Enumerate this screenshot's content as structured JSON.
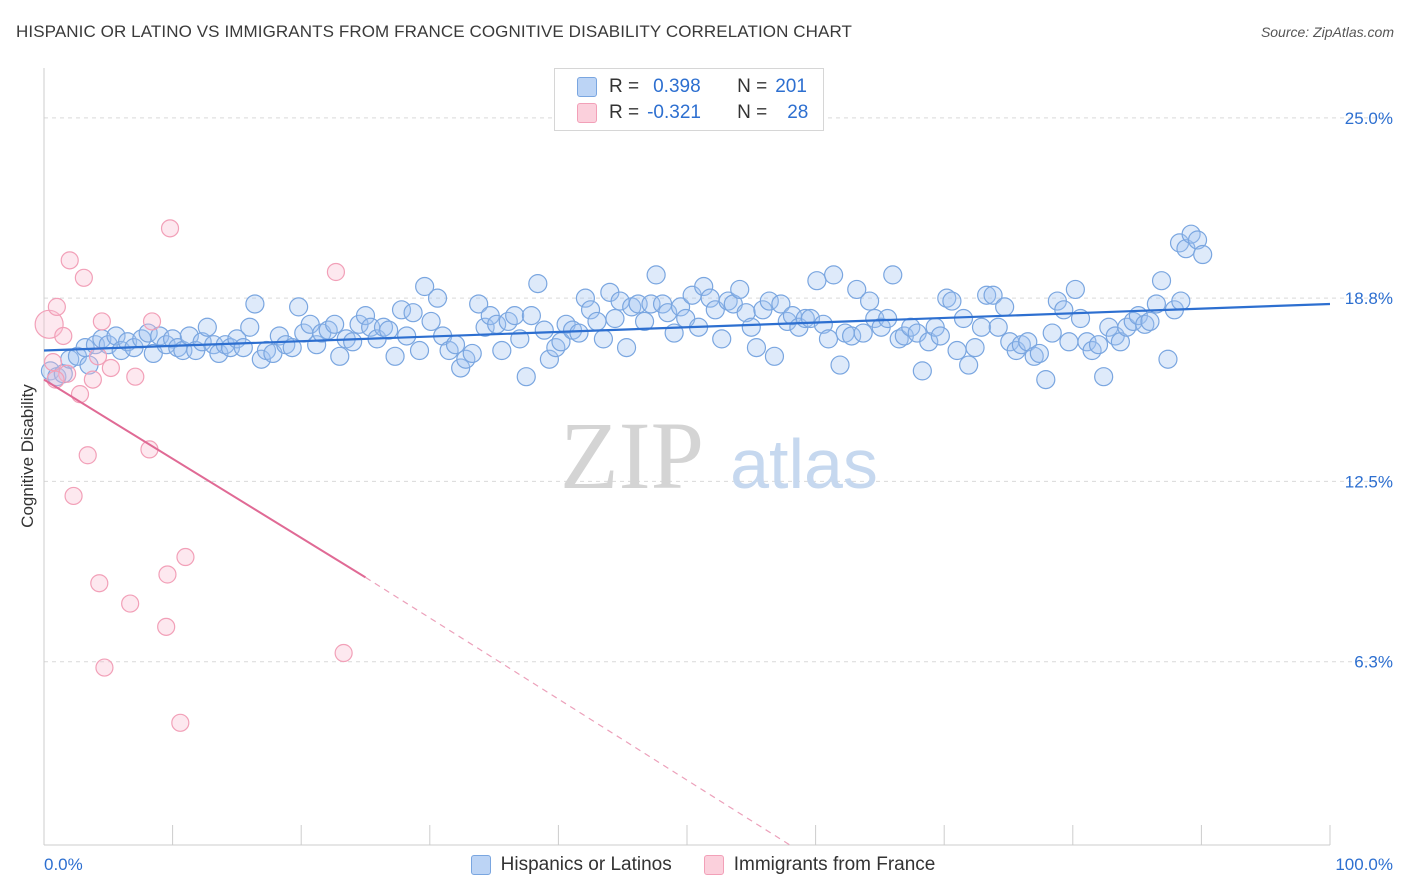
{
  "header": {
    "title": "HISPANIC OR LATINO VS IMMIGRANTS FROM FRANCE COGNITIVE DISABILITY CORRELATION CHART",
    "source": "Source: ZipAtlas.com"
  },
  "watermark": {
    "zip": "ZIP",
    "atlas": "atlas"
  },
  "legend": {
    "rows": [
      {
        "r_label": "R =",
        "r_value": "0.398",
        "n_label": "N =",
        "n_value": "201",
        "color": "#7aa6e0"
      },
      {
        "r_label": "R =",
        "r_value": "-0.321",
        "n_label": "N =",
        "n_value": "28",
        "color": "#f2a0b8"
      }
    ]
  },
  "bottom_legend": {
    "items": [
      {
        "label": "Hispanics or Latinos",
        "color": "#7aa6e0"
      },
      {
        "label": "Immigrants from France",
        "color": "#f2a0b8"
      }
    ]
  },
  "chart_data": {
    "type": "scatter",
    "title": "HISPANIC OR LATINO VS IMMIGRANTS FROM FRANCE COGNITIVE DISABILITY CORRELATION CHART",
    "ylabel": "Cognitive Disability",
    "xlabel": "",
    "xlim": [
      0,
      100
    ],
    "ylim": [
      0,
      26.3
    ],
    "x_tick_labels": [
      "0.0%",
      "100.0%"
    ],
    "y_ticks": [
      6.3,
      12.5,
      18.8,
      25.0
    ],
    "y_tick_labels": [
      "6.3%",
      "12.5%",
      "18.8%",
      "25.0%"
    ],
    "grid": "horizontal dashed",
    "series": [
      {
        "name": "Hispanics or Latinos",
        "color": "#7aa6e0",
        "trend": {
          "x": [
            0,
            100
          ],
          "y": [
            17.0,
            18.6
          ]
        },
        "points": [
          [
            0.5,
            16.3
          ],
          [
            1.0,
            16.1
          ],
          [
            1.5,
            16.2
          ],
          [
            2.0,
            16.7
          ],
          [
            2.6,
            16.8
          ],
          [
            3.2,
            17.1
          ],
          [
            3.5,
            16.5
          ],
          [
            4.0,
            17.2
          ],
          [
            4.5,
            17.4
          ],
          [
            5.0,
            17.2
          ],
          [
            5.6,
            17.5
          ],
          [
            6.0,
            17.0
          ],
          [
            6.5,
            17.3
          ],
          [
            7.0,
            17.1
          ],
          [
            7.6,
            17.4
          ],
          [
            8.1,
            17.6
          ],
          [
            8.5,
            16.9
          ],
          [
            9.0,
            17.5
          ],
          [
            9.5,
            17.2
          ],
          [
            10.0,
            17.4
          ],
          [
            10.4,
            17.1
          ],
          [
            10.8,
            17.0
          ],
          [
            11.3,
            17.5
          ],
          [
            11.8,
            17.0
          ],
          [
            12.3,
            17.3
          ],
          [
            12.7,
            17.8
          ],
          [
            13.2,
            17.2
          ],
          [
            13.6,
            16.9
          ],
          [
            14.1,
            17.2
          ],
          [
            14.5,
            17.1
          ],
          [
            15.0,
            17.4
          ],
          [
            15.5,
            17.1
          ],
          [
            16.0,
            17.8
          ],
          [
            16.4,
            18.6
          ],
          [
            16.9,
            16.7
          ],
          [
            17.3,
            17.0
          ],
          [
            17.8,
            16.9
          ],
          [
            18.3,
            17.5
          ],
          [
            18.8,
            17.2
          ],
          [
            19.3,
            17.1
          ],
          [
            19.8,
            18.5
          ],
          [
            20.2,
            17.6
          ],
          [
            20.7,
            17.9
          ],
          [
            21.2,
            17.2
          ],
          [
            21.6,
            17.6
          ],
          [
            22.1,
            17.7
          ],
          [
            22.6,
            17.9
          ],
          [
            23.0,
            16.8
          ],
          [
            23.5,
            17.4
          ],
          [
            24.0,
            17.3
          ],
          [
            24.5,
            17.9
          ],
          [
            25.0,
            18.2
          ],
          [
            25.4,
            17.8
          ],
          [
            25.9,
            17.4
          ],
          [
            26.4,
            17.8
          ],
          [
            26.8,
            17.7
          ],
          [
            27.3,
            16.8
          ],
          [
            27.8,
            18.4
          ],
          [
            28.2,
            17.5
          ],
          [
            28.7,
            18.3
          ],
          [
            29.2,
            17.0
          ],
          [
            29.6,
            19.2
          ],
          [
            30.1,
            18.0
          ],
          [
            30.6,
            18.8
          ],
          [
            31.0,
            17.5
          ],
          [
            31.5,
            17.0
          ],
          [
            32.0,
            17.2
          ],
          [
            32.4,
            16.4
          ],
          [
            32.8,
            16.7
          ],
          [
            33.3,
            16.9
          ],
          [
            33.8,
            18.6
          ],
          [
            34.3,
            17.8
          ],
          [
            34.7,
            18.2
          ],
          [
            35.2,
            17.9
          ],
          [
            35.6,
            17.0
          ],
          [
            36.1,
            18.0
          ],
          [
            36.6,
            18.2
          ],
          [
            37.0,
            17.4
          ],
          [
            37.5,
            16.1
          ],
          [
            37.9,
            18.2
          ],
          [
            38.4,
            19.3
          ],
          [
            38.9,
            17.7
          ],
          [
            39.3,
            16.7
          ],
          [
            39.8,
            17.1
          ],
          [
            40.2,
            17.3
          ],
          [
            40.6,
            17.9
          ],
          [
            41.1,
            17.7
          ],
          [
            41.6,
            17.6
          ],
          [
            42.1,
            18.8
          ],
          [
            42.5,
            18.4
          ],
          [
            43.0,
            18.0
          ],
          [
            43.5,
            17.4
          ],
          [
            44.0,
            19.0
          ],
          [
            44.4,
            18.1
          ],
          [
            44.8,
            18.7
          ],
          [
            45.3,
            17.1
          ],
          [
            45.7,
            18.5
          ],
          [
            46.2,
            18.6
          ],
          [
            46.7,
            18.0
          ],
          [
            47.2,
            18.6
          ],
          [
            47.6,
            19.6
          ],
          [
            48.1,
            18.6
          ],
          [
            48.5,
            18.3
          ],
          [
            49.0,
            17.6
          ],
          [
            49.5,
            18.5
          ],
          [
            49.9,
            18.1
          ],
          [
            50.4,
            18.9
          ],
          [
            50.9,
            17.8
          ],
          [
            51.3,
            19.2
          ],
          [
            51.8,
            18.8
          ],
          [
            52.2,
            18.4
          ],
          [
            52.7,
            17.4
          ],
          [
            53.2,
            18.7
          ],
          [
            53.6,
            18.6
          ],
          [
            54.1,
            19.1
          ],
          [
            54.6,
            18.3
          ],
          [
            55.0,
            17.8
          ],
          [
            55.4,
            17.1
          ],
          [
            55.9,
            18.4
          ],
          [
            56.4,
            18.7
          ],
          [
            56.8,
            16.8
          ],
          [
            57.3,
            18.6
          ],
          [
            57.8,
            18.0
          ],
          [
            58.2,
            18.2
          ],
          [
            58.7,
            17.8
          ],
          [
            59.2,
            18.1
          ],
          [
            59.6,
            18.1
          ],
          [
            60.1,
            19.4
          ],
          [
            60.6,
            17.9
          ],
          [
            61.0,
            17.4
          ],
          [
            61.4,
            19.6
          ],
          [
            61.9,
            16.5
          ],
          [
            62.3,
            17.6
          ],
          [
            62.8,
            17.5
          ],
          [
            63.2,
            19.1
          ],
          [
            63.7,
            17.6
          ],
          [
            64.2,
            18.7
          ],
          [
            64.6,
            18.1
          ],
          [
            65.1,
            17.8
          ],
          [
            65.6,
            18.1
          ],
          [
            66.0,
            19.6
          ],
          [
            66.5,
            17.4
          ],
          [
            66.9,
            17.5
          ],
          [
            67.4,
            17.8
          ],
          [
            67.9,
            17.6
          ],
          [
            68.3,
            16.3
          ],
          [
            68.8,
            17.3
          ],
          [
            69.3,
            17.8
          ],
          [
            69.7,
            17.5
          ],
          [
            70.2,
            18.8
          ],
          [
            70.6,
            18.7
          ],
          [
            71.0,
            17.0
          ],
          [
            71.5,
            18.1
          ],
          [
            71.9,
            16.5
          ],
          [
            72.4,
            17.1
          ],
          [
            72.9,
            17.8
          ],
          [
            73.3,
            18.9
          ],
          [
            73.8,
            18.9
          ],
          [
            74.2,
            17.8
          ],
          [
            74.7,
            18.5
          ],
          [
            75.1,
            17.3
          ],
          [
            75.6,
            17.0
          ],
          [
            76.0,
            17.2
          ],
          [
            76.5,
            17.3
          ],
          [
            77.0,
            16.8
          ],
          [
            77.4,
            16.9
          ],
          [
            77.9,
            16.0
          ],
          [
            78.4,
            17.6
          ],
          [
            78.8,
            18.7
          ],
          [
            79.3,
            18.4
          ],
          [
            79.7,
            17.3
          ],
          [
            80.2,
            19.1
          ],
          [
            80.6,
            18.1
          ],
          [
            81.1,
            17.3
          ],
          [
            81.5,
            17.0
          ],
          [
            82.0,
            17.2
          ],
          [
            82.4,
            16.1
          ],
          [
            82.8,
            17.8
          ],
          [
            83.3,
            17.5
          ],
          [
            83.7,
            17.3
          ],
          [
            84.2,
            17.8
          ],
          [
            84.7,
            18.0
          ],
          [
            85.1,
            18.2
          ],
          [
            85.6,
            17.9
          ],
          [
            86.0,
            18.0
          ],
          [
            86.5,
            18.6
          ],
          [
            86.9,
            19.4
          ],
          [
            87.4,
            16.7
          ],
          [
            87.9,
            18.4
          ],
          [
            88.3,
            20.7
          ],
          [
            88.8,
            20.5
          ],
          [
            89.2,
            21.0
          ],
          [
            89.7,
            20.8
          ],
          [
            90.1,
            20.3
          ],
          [
            88.4,
            18.7
          ]
        ]
      },
      {
        "name": "Immigrants from France",
        "color": "#f2a0b8",
        "trend": {
          "x": [
            0,
            25
          ],
          "y": [
            16.0,
            9.2
          ],
          "dashed_to": {
            "x": 58,
            "y": 0
          }
        },
        "points": [
          [
            0.4,
            17.9
          ],
          [
            0.7,
            16.6
          ],
          [
            1.0,
            18.5
          ],
          [
            1.5,
            17.5
          ],
          [
            1.8,
            16.2
          ],
          [
            2.0,
            20.1
          ],
          [
            2.3,
            12.0
          ],
          [
            2.8,
            15.5
          ],
          [
            3.1,
            19.5
          ],
          [
            3.4,
            13.4
          ],
          [
            3.8,
            16.0
          ],
          [
            4.2,
            16.8
          ],
          [
            4.3,
            9.0
          ],
          [
            4.5,
            18.0
          ],
          [
            4.7,
            6.1
          ],
          [
            5.2,
            16.4
          ],
          [
            6.7,
            8.3
          ],
          [
            7.1,
            16.1
          ],
          [
            8.2,
            13.6
          ],
          [
            8.4,
            18.0
          ],
          [
            9.5,
            7.5
          ],
          [
            9.6,
            9.3
          ],
          [
            9.8,
            21.2
          ],
          [
            10.6,
            4.2
          ],
          [
            11.0,
            9.9
          ],
          [
            22.7,
            19.7
          ],
          [
            23.3,
            6.6
          ],
          [
            0.9,
            16.0
          ]
        ]
      }
    ]
  }
}
